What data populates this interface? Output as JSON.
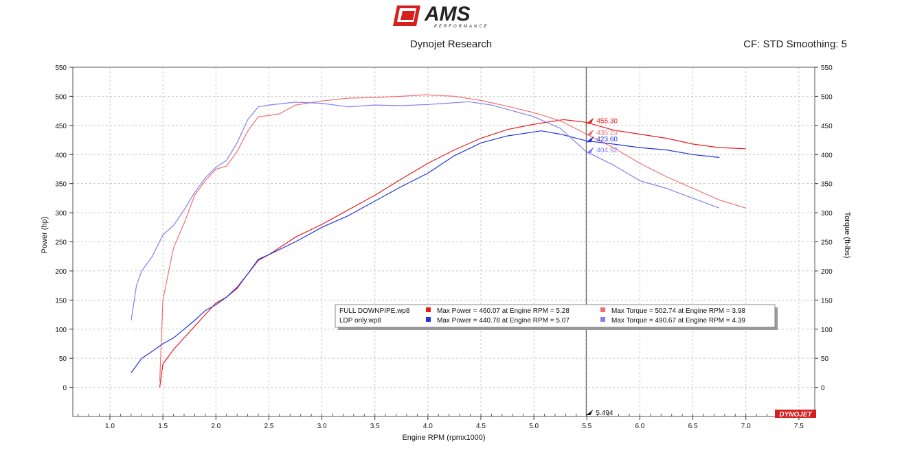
{
  "header": {
    "logo_text": "AMS",
    "logo_subtext": "PERFORMANCE",
    "title": "Dynojet Research",
    "cf_smoothing": "CF: STD Smoothing: 5"
  },
  "colors": {
    "full_power": "#e81b1b",
    "full_torque": "#f07070",
    "ldp_power": "#2233dd",
    "ldp_torque": "#8080f0",
    "grid": "#c8c8c8",
    "cursor": "#666666",
    "brand_red": "#d42020"
  },
  "chart_data": {
    "type": "line",
    "xlabel": "Engine RPM (rpmx1000)",
    "ylabel": "Power (hp)",
    "y2label": "Torque (ft-lbs)",
    "xlim": [
      0.65,
      7.65
    ],
    "ylim": [
      -50,
      550
    ],
    "xticks": [
      1.0,
      1.5,
      2.0,
      2.5,
      3.0,
      3.5,
      4.0,
      4.5,
      5.0,
      5.5,
      6.0,
      6.5,
      7.0,
      7.5
    ],
    "yticks": [
      0,
      50,
      100,
      150,
      200,
      250,
      300,
      350,
      400,
      450,
      500,
      550
    ],
    "grid": true,
    "cursor": {
      "x": 5.494,
      "label": "5.494",
      "readouts": [
        {
          "series": "FULL DOWNPIPE.wp8 power",
          "label": "455.30",
          "y": 455.3,
          "color": "#e81b1b"
        },
        {
          "series": "FULL DOWNPIPE.wp8 torque",
          "label": "435.23",
          "y": 435.23,
          "color": "#f07070"
        },
        {
          "series": "LDP only.wp8 power",
          "label": "423.60",
          "y": 423.6,
          "color": "#2233dd"
        },
        {
          "series": "LDP only.wp8 torque",
          "label": "404.92",
          "y": 404.92,
          "color": "#8080f0"
        }
      ]
    },
    "series": [
      {
        "name": "FULL DOWNPIPE.wp8",
        "kind": "power",
        "color": "#e81b1b",
        "x": [
          1.47,
          1.5,
          1.6,
          1.7,
          1.8,
          1.9,
          2.0,
          2.1,
          2.2,
          2.3,
          2.4,
          2.5,
          2.6,
          2.75,
          3.0,
          3.25,
          3.5,
          3.75,
          4.0,
          4.25,
          4.5,
          4.75,
          5.0,
          5.28,
          5.494,
          5.75,
          6.0,
          6.25,
          6.5,
          6.75,
          7.0
        ],
        "y": [
          0,
          40,
          65,
          85,
          105,
          125,
          145,
          155,
          170,
          195,
          218,
          228,
          240,
          258,
          280,
          305,
          330,
          358,
          385,
          408,
          428,
          443,
          452,
          460,
          455.3,
          442,
          435,
          428,
          418,
          412,
          410
        ]
      },
      {
        "name": "FULL DOWNPIPE.wp8",
        "kind": "torque",
        "color": "#f07070",
        "x": [
          1.47,
          1.5,
          1.6,
          1.7,
          1.8,
          1.9,
          2.0,
          2.1,
          2.2,
          2.3,
          2.4,
          2.5,
          2.6,
          2.75,
          3.0,
          3.25,
          3.5,
          3.75,
          3.98,
          4.25,
          4.5,
          4.75,
          5.0,
          5.25,
          5.494,
          5.75,
          6.0,
          6.25,
          6.5,
          6.75,
          7.0
        ],
        "y": [
          10,
          150,
          240,
          282,
          330,
          355,
          375,
          380,
          405,
          440,
          465,
          467,
          470,
          485,
          492,
          497,
          498,
          500,
          502.74,
          500,
          493,
          483,
          472,
          458,
          435.23,
          412,
          385,
          362,
          342,
          322,
          308
        ]
      },
      {
        "name": "LDP only.wp8",
        "kind": "power",
        "color": "#2233dd",
        "x": [
          1.2,
          1.3,
          1.4,
          1.5,
          1.6,
          1.7,
          1.8,
          1.9,
          2.0,
          2.1,
          2.2,
          2.3,
          2.4,
          2.5,
          2.75,
          3.0,
          3.25,
          3.5,
          3.75,
          4.0,
          4.25,
          4.5,
          4.75,
          5.07,
          5.25,
          5.494,
          5.75,
          6.0,
          6.25,
          6.5,
          6.75
        ],
        "y": [
          25,
          50,
          62,
          75,
          85,
          100,
          115,
          132,
          142,
          155,
          172,
          195,
          220,
          228,
          250,
          275,
          295,
          320,
          345,
          368,
          398,
          420,
          432,
          440.78,
          435,
          423.6,
          418,
          412,
          408,
          400,
          395
        ]
      },
      {
        "name": "LDP only.wp8",
        "kind": "torque",
        "color": "#8080f0",
        "x": [
          1.2,
          1.25,
          1.3,
          1.4,
          1.5,
          1.6,
          1.7,
          1.8,
          1.9,
          2.0,
          2.1,
          2.2,
          2.3,
          2.4,
          2.5,
          2.75,
          3.0,
          3.25,
          3.5,
          3.75,
          4.0,
          4.39,
          4.6,
          4.8,
          5.0,
          5.25,
          5.494,
          5.75,
          6.0,
          6.25,
          6.5,
          6.75
        ],
        "y": [
          115,
          175,
          200,
          225,
          262,
          278,
          305,
          335,
          360,
          378,
          390,
          420,
          460,
          482,
          485,
          490,
          488,
          482,
          485,
          484,
          486,
          490.67,
          485,
          475,
          465,
          445,
          404.92,
          382,
          355,
          342,
          325,
          308
        ]
      }
    ],
    "legend": {
      "placement": "center",
      "rows": [
        {
          "file": "FULL DOWNPIPE.wp8",
          "power_color": "#e81b1b",
          "power_text": "Max Power = 460.07 at Engine RPM = 5.28",
          "torque_color": "#f07070",
          "torque_text": "Max Torque = 502.74 at Engine RPM = 3.98"
        },
        {
          "file": "LDP only.wp8",
          "power_color": "#2233dd",
          "power_text": "Max Power = 440.78 at Engine RPM = 5.07",
          "torque_color": "#8080f0",
          "torque_text": "Max Torque = 490.67 at Engine RPM = 4.39"
        }
      ]
    },
    "watermark": "DYNOJET"
  }
}
